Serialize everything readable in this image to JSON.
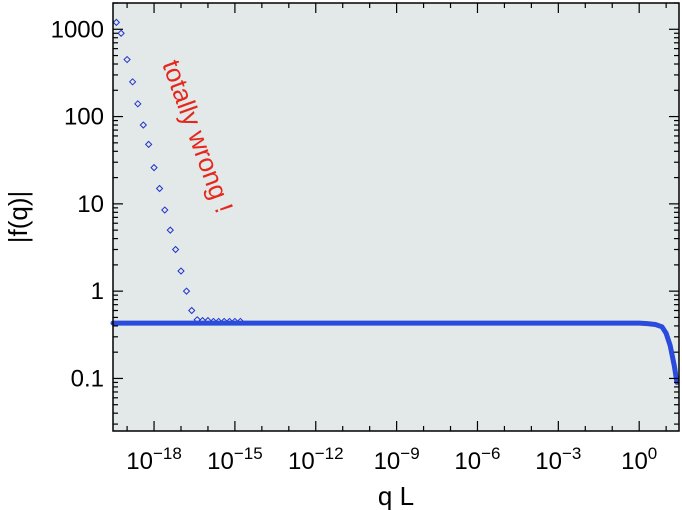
{
  "chart_data": {
    "type": "scatter",
    "title": "",
    "xlabel": "q L",
    "ylabel": "|f(q)|",
    "xscale": "log",
    "yscale": "log",
    "xlim": [
      3e-20,
      30.0
    ],
    "ylim": [
      0.025,
      2000
    ],
    "x_ticks": [
      {
        "base": "10",
        "exp": "−18",
        "value": 1e-18
      },
      {
        "base": "10",
        "exp": "−15",
        "value": 1e-15
      },
      {
        "base": "10",
        "exp": "−12",
        "value": 1e-12
      },
      {
        "base": "10",
        "exp": "−9",
        "value": 1e-09
      },
      {
        "base": "10",
        "exp": "−6",
        "value": 1e-06
      },
      {
        "base": "10",
        "exp": "−3",
        "value": 0.001
      },
      {
        "base": "10",
        "exp": "0",
        "value": 1
      }
    ],
    "y_ticks": [
      {
        "label": "0.1",
        "value": 0.1
      },
      {
        "label": "1",
        "value": 1
      },
      {
        "label": "10",
        "value": 10
      },
      {
        "label": "100",
        "value": 100
      },
      {
        "label": "1000",
        "value": 1000
      }
    ],
    "grid": false,
    "background": "#e2e9e8",
    "series": [
      {
        "style": "markers",
        "marker": "open-diamond",
        "color": "#2233cc",
        "x": [
          4e-20,
          6e-20,
          1e-19,
          1.6e-19,
          2.5e-19,
          4e-19,
          6.3e-19,
          1e-18,
          1.6e-18,
          2.5e-18,
          4e-18,
          6.3e-18,
          1e-17,
          1.6e-17,
          2.5e-17,
          4e-17,
          6.3e-17,
          1e-16,
          1.6e-16,
          2.5e-16,
          4e-16,
          6.3e-16,
          1e-15,
          1.6e-15
        ],
        "y": [
          1200,
          900,
          450,
          250,
          140,
          80,
          48,
          26,
          15,
          8.5,
          5.0,
          3.0,
          1.7,
          1.0,
          0.6,
          0.47,
          0.46,
          0.46,
          0.45,
          0.45,
          0.45,
          0.45,
          0.45,
          0.45
        ]
      },
      {
        "style": "line",
        "color": "#2a4bdc",
        "x": [
          3e-20,
          1e-18,
          1e-15,
          1e-12,
          1e-09,
          1e-06,
          0.001,
          0.1,
          0.5,
          1.0,
          2.0,
          4.0,
          7.0,
          10,
          14,
          20,
          25
        ],
        "y": [
          0.43,
          0.43,
          0.43,
          0.43,
          0.43,
          0.43,
          0.43,
          0.43,
          0.43,
          0.43,
          0.425,
          0.415,
          0.39,
          0.33,
          0.24,
          0.14,
          0.09
        ]
      }
    ],
    "annotations": [
      {
        "text": "totally wrong !",
        "color": "#e5281e"
      }
    ]
  }
}
